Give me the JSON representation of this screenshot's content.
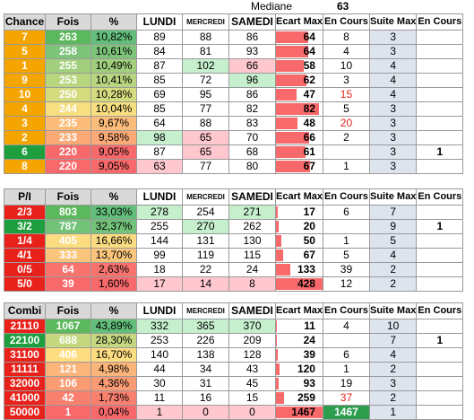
{
  "median": {
    "label": "Mediane",
    "value": "63"
  },
  "tables": [
    {
      "headers": [
        "Chance",
        "Fois",
        "%",
        "LUNDI",
        "MERCREDI",
        "SAMEDI",
        "Ecart Max",
        "En Cours",
        "Suite Max",
        "En Cours"
      ],
      "rows": [
        {
          "label": "7",
          "fois": "263",
          "pct": "10,82%",
          "lundi": "89",
          "mercredi": "88",
          "samedi": "86",
          "ecart": "64",
          "ecart_pct": 70,
          "encours": "8",
          "suite": "3",
          "encours2": "",
          "lab_color": "#f5a500",
          "fois_color": "#5cb85c",
          "pct_color": "#63be7b",
          "lundi_hl": "",
          "mercredi_hl": "",
          "samedi_hl": "",
          "encours_red": false
        },
        {
          "label": "5",
          "fois": "258",
          "pct": "10,61%",
          "lundi": "84",
          "mercredi": "81",
          "samedi": "93",
          "ecart": "64",
          "ecart_pct": 70,
          "encours": "4",
          "suite": "3",
          "encours2": "",
          "lab_color": "#f5a500",
          "fois_color": "#7dc47a",
          "pct_color": "#7dc47a",
          "lundi_hl": "",
          "mercredi_hl": "",
          "samedi_hl": "",
          "encours_red": false
        },
        {
          "label": "1",
          "fois": "255",
          "pct": "10,49%",
          "lundi": "87",
          "mercredi": "102",
          "samedi": "66",
          "ecart": "58",
          "ecart_pct": 60,
          "encours": "10",
          "suite": "4",
          "encours2": "",
          "lab_color": "#f5a500",
          "fois_color": "#a1cf7d",
          "pct_color": "#a1cf7d",
          "lundi_hl": "",
          "mercredi_hl": "green",
          "samedi_hl": "pink",
          "encours_red": false
        },
        {
          "label": "9",
          "fois": "253",
          "pct": "10,41%",
          "lundi": "85",
          "mercredi": "72",
          "samedi": "96",
          "ecart": "62",
          "ecart_pct": 66,
          "encours": "3",
          "suite": "4",
          "encours2": "",
          "lab_color": "#f5a500",
          "fois_color": "#b8d67f",
          "pct_color": "#b8d67f",
          "lundi_hl": "",
          "mercredi_hl": "",
          "samedi_hl": "green",
          "encours_red": false
        },
        {
          "label": "10",
          "fois": "250",
          "pct": "10,28%",
          "lundi": "69",
          "mercredi": "95",
          "samedi": "86",
          "ecart": "47",
          "ecart_pct": 45,
          "encours": "15",
          "suite": "4",
          "encours2": "",
          "lab_color": "#f5a500",
          "fois_color": "#d5dc80",
          "pct_color": "#d5dc80",
          "lundi_hl": "",
          "mercredi_hl": "",
          "samedi_hl": "",
          "encours_red": true
        },
        {
          "label": "4",
          "fois": "244",
          "pct": "10,04%",
          "lundi": "85",
          "mercredi": "77",
          "samedi": "82",
          "ecart": "82",
          "ecart_pct": 92,
          "encours": "5",
          "suite": "3",
          "encours2": "",
          "lab_color": "#f5a500",
          "fois_color": "#f7df80",
          "pct_color": "#f7df80",
          "lundi_hl": "",
          "mercredi_hl": "",
          "samedi_hl": "",
          "encours_red": false
        },
        {
          "label": "3",
          "fois": "235",
          "pct": "9,67%",
          "lundi": "64",
          "mercredi": "88",
          "samedi": "83",
          "ecart": "48",
          "ecart_pct": 46,
          "encours": "20",
          "suite": "3",
          "encours2": "",
          "lab_color": "#f5a500",
          "fois_color": "#fcbd7b",
          "pct_color": "#fcbd7b",
          "lundi_hl": "",
          "mercredi_hl": "",
          "samedi_hl": "",
          "encours_red": true
        },
        {
          "label": "2",
          "fois": "233",
          "pct": "9,58%",
          "lundi": "98",
          "mercredi": "65",
          "samedi": "70",
          "ecart": "66",
          "ecart_pct": 72,
          "encours": "2",
          "suite": "3",
          "encours2": "",
          "lab_color": "#f5a500",
          "fois_color": "#fbaa77",
          "pct_color": "#fbaa77",
          "lundi_hl": "green",
          "mercredi_hl": "pink",
          "samedi_hl": "",
          "encours_red": false
        },
        {
          "label": "6",
          "fois": "220",
          "pct": "9,05%",
          "lundi": "87",
          "mercredi": "65",
          "samedi": "68",
          "ecart": "61",
          "ecart_pct": 64,
          "encours": "",
          "suite": "3",
          "encours2": "1",
          "lab_color": "#1e9e3e",
          "fois_color": "#f8696b",
          "pct_color": "#f8696b",
          "lundi_hl": "",
          "mercredi_hl": "pink",
          "samedi_hl": "",
          "encours_red": false
        },
        {
          "label": "8",
          "fois": "220",
          "pct": "9,05%",
          "lundi": "63",
          "mercredi": "77",
          "samedi": "80",
          "ecart": "67",
          "ecart_pct": 74,
          "encours": "1",
          "suite": "3",
          "encours2": "",
          "lab_color": "#f5a500",
          "fois_color": "#f8696b",
          "pct_color": "#f8696b",
          "lundi_hl": "pink",
          "mercredi_hl": "",
          "samedi_hl": "",
          "encours_red": false
        }
      ]
    },
    {
      "headers": [
        "P/I",
        "Fois",
        "%",
        "LUNDI",
        "MERCREDI",
        "SAMEDI",
        "Ecart Max",
        "En Cours",
        "Suite Max",
        "En Cours"
      ],
      "rows": [
        {
          "label": "2/3",
          "fois": "803",
          "pct": "33,03%",
          "lundi": "278",
          "mercredi": "254",
          "samedi": "271",
          "ecart": "17",
          "ecart_pct": 4,
          "encours": "6",
          "suite": "7",
          "encours2": "",
          "lab_color": "#e8221b",
          "fois_color": "#5cb85c",
          "pct_color": "#63be7b",
          "lundi_hl": "green",
          "mercredi_hl": "",
          "samedi_hl": "green",
          "encours_red": false
        },
        {
          "label": "3/2",
          "fois": "787",
          "pct": "32,37%",
          "lundi": "255",
          "mercredi": "270",
          "samedi": "262",
          "ecart": "20",
          "ecart_pct": 5,
          "encours": "",
          "suite": "9",
          "encours2": "1",
          "lab_color": "#1e9e3e",
          "fois_color": "#73c27a",
          "pct_color": "#73c27a",
          "lundi_hl": "",
          "mercredi_hl": "green",
          "samedi_hl": "",
          "encours_red": false
        },
        {
          "label": "1/4",
          "fois": "405",
          "pct": "16,66%",
          "lundi": "144",
          "mercredi": "131",
          "samedi": "130",
          "ecart": "50",
          "ecart_pct": 12,
          "encours": "1",
          "suite": "5",
          "encours2": "",
          "lab_color": "#e8221b",
          "fois_color": "#fbdc80",
          "pct_color": "#fbdc80",
          "lundi_hl": "",
          "mercredi_hl": "",
          "samedi_hl": "",
          "encours_red": false
        },
        {
          "label": "4/1",
          "fois": "333",
          "pct": "13,70%",
          "lundi": "99",
          "mercredi": "119",
          "samedi": "115",
          "ecart": "67",
          "ecart_pct": 16,
          "encours": "5",
          "suite": "4",
          "encours2": "",
          "lab_color": "#e8221b",
          "fois_color": "#fbc67c",
          "pct_color": "#fbc67c",
          "lundi_hl": "",
          "mercredi_hl": "",
          "samedi_hl": "",
          "encours_red": false
        },
        {
          "label": "0/5",
          "fois": "64",
          "pct": "2,63%",
          "lundi": "18",
          "mercredi": "22",
          "samedi": "24",
          "ecart": "133",
          "ecart_pct": 31,
          "encours": "39",
          "suite": "2",
          "encours2": "",
          "lab_color": "#e8221b",
          "fois_color": "#f8736e",
          "pct_color": "#f8736e",
          "lundi_hl": "",
          "mercredi_hl": "",
          "samedi_hl": "",
          "encours_red": false
        },
        {
          "label": "5/0",
          "fois": "39",
          "pct": "1,60%",
          "lundi": "17",
          "mercredi": "14",
          "samedi": "8",
          "ecart": "428",
          "ecart_pct": 100,
          "encours": "12",
          "suite": "2",
          "encours2": "",
          "lab_color": "#e8221b",
          "fois_color": "#f8696b",
          "pct_color": "#f8696b",
          "lundi_hl": "pink",
          "mercredi_hl": "pink",
          "samedi_hl": "pink",
          "encours_red": false
        }
      ]
    },
    {
      "headers": [
        "Combi",
        "Fois",
        "%",
        "LUNDI",
        "MERCREDI",
        "SAMEDI",
        "Ecart Max",
        "En Cours",
        "Suite Max",
        "En Cours"
      ],
      "rows": [
        {
          "label": "21110",
          "fois": "1067",
          "pct": "43,89%",
          "lundi": "332",
          "mercredi": "365",
          "samedi": "370",
          "ecart": "11",
          "ecart_pct": 1,
          "encours": "4",
          "suite": "10",
          "encours2": "",
          "lab_color": "#e8221b",
          "fois_color": "#5cb85c",
          "pct_color": "#63be7b",
          "lundi_hl": "green",
          "mercredi_hl": "green",
          "samedi_hl": "green",
          "encours_red": false
        },
        {
          "label": "22100",
          "fois": "688",
          "pct": "28,30%",
          "lundi": "253",
          "mercredi": "226",
          "samedi": "209",
          "ecart": "24",
          "ecart_pct": 2,
          "encours": "",
          "suite": "7",
          "encours2": "1",
          "lab_color": "#1e9e3e",
          "fois_color": "#c5d880",
          "pct_color": "#c5d880",
          "lundi_hl": "",
          "mercredi_hl": "",
          "samedi_hl": "",
          "encours_red": false
        },
        {
          "label": "31100",
          "fois": "406",
          "pct": "16,70%",
          "lundi": "140",
          "mercredi": "138",
          "samedi": "128",
          "ecart": "39",
          "ecart_pct": 3,
          "encours": "6",
          "suite": "4",
          "encours2": "",
          "lab_color": "#e8221b",
          "fois_color": "#fedd81",
          "pct_color": "#fedd81",
          "lundi_hl": "",
          "mercredi_hl": "",
          "samedi_hl": "",
          "encours_red": false
        },
        {
          "label": "11111",
          "fois": "121",
          "pct": "4,98%",
          "lundi": "44",
          "mercredi": "34",
          "samedi": "43",
          "ecart": "120",
          "ecart_pct": 8,
          "encours": "1",
          "suite": "2",
          "encours2": "",
          "lab_color": "#e8221b",
          "fois_color": "#fbb479",
          "pct_color": "#fbb479",
          "lundi_hl": "",
          "mercredi_hl": "",
          "samedi_hl": "",
          "encours_red": false
        },
        {
          "label": "32000",
          "fois": "106",
          "pct": "4,36%",
          "lundi": "30",
          "mercredi": "31",
          "samedi": "45",
          "ecart": "93",
          "ecart_pct": 6,
          "encours": "19",
          "suite": "3",
          "encours2": "",
          "lab_color": "#e8221b",
          "fois_color": "#fa9b74",
          "pct_color": "#fa9b74",
          "lundi_hl": "",
          "mercredi_hl": "",
          "samedi_hl": "",
          "encours_red": false
        },
        {
          "label": "41000",
          "fois": "42",
          "pct": "1,73%",
          "lundi": "11",
          "mercredi": "16",
          "samedi": "15",
          "ecart": "259",
          "ecart_pct": 18,
          "encours": "37",
          "suite": "2",
          "encours2": "",
          "lab_color": "#e8221b",
          "fois_color": "#f97f6f",
          "pct_color": "#f97f6f",
          "lundi_hl": "",
          "mercredi_hl": "",
          "samedi_hl": "",
          "encours_red": true
        },
        {
          "label": "50000",
          "fois": "1",
          "pct": "0,04%",
          "lundi": "1",
          "mercredi": "0",
          "samedi": "0",
          "ecart": "1467",
          "ecart_pct": 100,
          "encours": "1467",
          "suite": "1",
          "encours2": "",
          "lab_color": "#e8221b",
          "fois_color": "#f8696b",
          "pct_color": "#f8696b",
          "lundi_hl": "pink",
          "mercredi_hl": "pink",
          "samedi_hl": "pink",
          "encours_red": false,
          "encours_green": true
        }
      ]
    }
  ]
}
